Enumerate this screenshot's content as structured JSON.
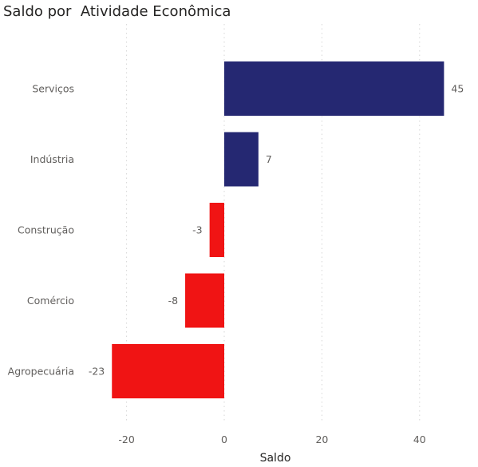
{
  "chart_data": {
    "type": "bar",
    "orientation": "horizontal",
    "title": "Saldo por  Atividade Econômica",
    "xlabel": "Saldo",
    "ylabel": "",
    "categories": [
      "Serviços",
      "Indústria",
      "Construção",
      "Comércio",
      "Agropecuária"
    ],
    "values": [
      45,
      7,
      -3,
      -8,
      -23
    ],
    "data_labels": [
      "45",
      "7",
      "-3",
      "-8",
      "-23"
    ],
    "xlim": [
      -25,
      47
    ],
    "xticks": [
      -20,
      0,
      20,
      40
    ],
    "grid": true,
    "positive_color": "#252872",
    "negative_color": "#f01414"
  }
}
